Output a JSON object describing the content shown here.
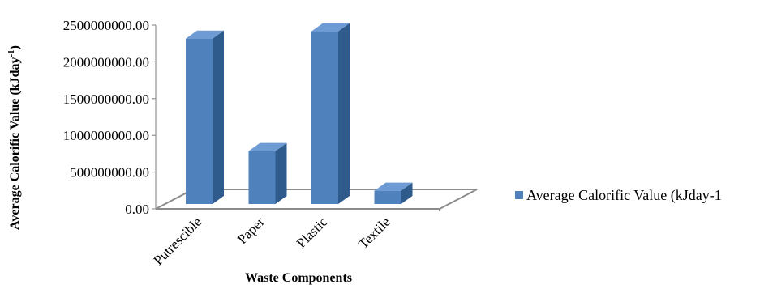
{
  "chart_data": {
    "type": "bar",
    "categories": [
      "Putrescible",
      "Paper",
      "Plastic",
      "Textile"
    ],
    "series": [
      {
        "name": "Average Calorific Value (kJday-1",
        "values": [
          2250000000,
          720000000,
          2350000000,
          180000000
        ],
        "color": "#4F81BD"
      }
    ],
    "xlabel": "Waste Components",
    "ylabel": "Average Calorific Value (kJday",
    "ylabel_superscript": "-1",
    "ylabel_suffix": ")",
    "ylim": [
      0,
      2500000000
    ],
    "yticks": [
      "0.00",
      "500000000.00",
      "1000000000.00",
      "1500000000.00",
      "2000000000.00",
      "2500000000.00"
    ],
    "three_d": true,
    "grid": false,
    "legend_position": "right"
  }
}
